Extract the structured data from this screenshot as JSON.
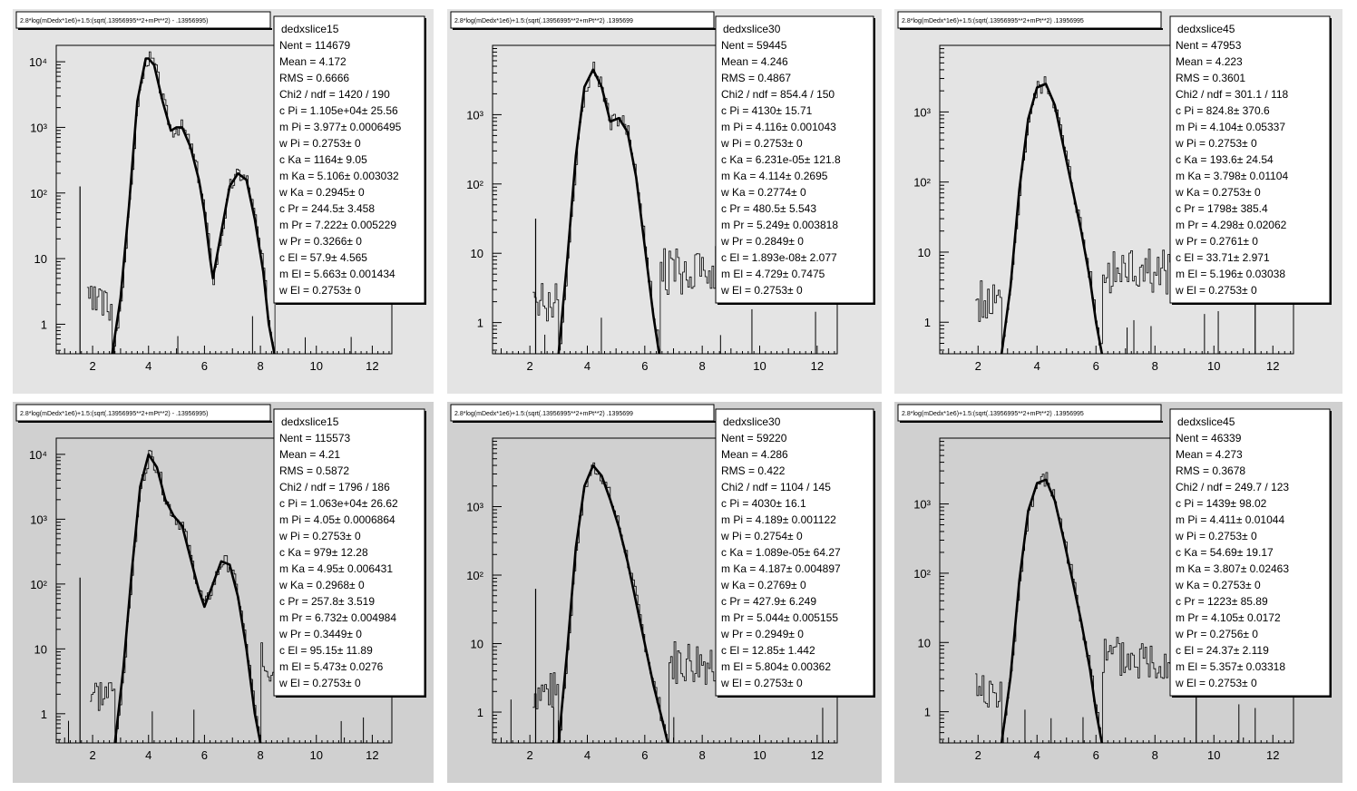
{
  "colors": {
    "row_top_bg": "#e4e4e4",
    "row_bottom_bg": "#d0d0d0",
    "line": "#000000",
    "pad_bg": "#ffffff"
  },
  "panels": [
    {
      "title": "2.8*log(mDedx*1e6)+1.5:(sqrt(.13956995**2+mPt**2) - .13956995)",
      "stats": {
        "name": "dedxslice15",
        "rows": [
          "Nent = 114679",
          "Mean  =  4.172",
          "RMS   = 0.6666",
          "Chi2 / ndf =  1420 / 190",
          "c Pi     = 1.105e+04± 25.56",
          "m Pi     = 3.977± 0.0006495",
          "w Pi     = 0.2753±     0",
          "c Ka     =  1164±  9.05",
          "m Ka     =  5.106± 0.003032",
          "w Ka     = 0.2945±     0",
          "c Pr     = 244.5± 3.458",
          "m Pr     = 7.222± 0.005229",
          "w Pr     = 0.3266±     0",
          "c El     =  57.9± 4.565",
          "m El     = 5.663± 0.001434",
          "w El     = 0.2753±     0"
        ]
      },
      "chart_data": {
        "type": "line",
        "title": "",
        "xlabel": "",
        "ylabel": "",
        "log_y": true,
        "xlim": [
          0.7,
          12.7
        ],
        "ylim_log10": [
          -0.45,
          4.25
        ],
        "x_ticks": [
          "2",
          "4",
          "6",
          "8",
          "10",
          "12"
        ],
        "y_ticks": [
          "1",
          "10",
          "10²",
          "10³",
          "10⁴"
        ],
        "fit_curve": {
          "x": [
            2.7,
            3.0,
            3.3,
            3.6,
            3.9,
            4.0,
            4.2,
            4.5,
            4.8,
            5.0,
            5.2,
            5.5,
            5.8,
            6.0,
            6.2,
            6.3,
            6.6,
            6.9,
            7.2,
            7.5,
            7.8,
            8.1,
            8.3,
            8.5
          ],
          "y_log10": [
            -0.45,
            0.4,
            1.8,
            3.4,
            4.05,
            4.05,
            3.95,
            3.4,
            2.95,
            3.0,
            3.0,
            2.7,
            2.2,
            1.7,
            1.0,
            0.7,
            1.4,
            2.1,
            2.3,
            2.2,
            1.6,
            0.8,
            0.0,
            -0.45
          ]
        },
        "spike": {
          "x": 1.55,
          "y_log10": 2.1
        }
      }
    },
    {
      "title": "2.8*log(mDedx*1e6)+1.5:(sqrt(.13956995**2+mPt**2)  .1395699",
      "stats": {
        "name": "dedxslice30",
        "rows": [
          "Nent = 59445",
          "Mean  =  4.246",
          "RMS   = 0.4867",
          "Chi2 / ndf = 854.4 / 150",
          "c Pi     =  4130± 15.71",
          "m Pi     =  4.116± 0.001043",
          "w Pi     = 0.2753±     0",
          "c Ka     = 6.231e-05± 121.8",
          "m Ka     =  4.114± 0.2695",
          "w Ka     =  0.2774±     0",
          "c Pr     = 480.5± 5.543",
          "m Pr     =  5.249± 0.003818",
          "w Pr     = 0.2849±     0",
          "c El     = 1.893e-08± 2.077",
          "m El     = 4.729± 0.7475",
          "w El     = 0.2753±     0"
        ]
      },
      "chart_data": {
        "type": "line",
        "title": "",
        "xlabel": "",
        "ylabel": "",
        "log_y": true,
        "xlim": [
          0.7,
          12.7
        ],
        "ylim_log10": [
          -0.45,
          4.0
        ],
        "x_ticks": [
          "2",
          "4",
          "6",
          "8",
          "10",
          "12"
        ],
        "y_ticks": [
          "1",
          "10",
          "10²",
          "10³"
        ],
        "fit_curve": {
          "x": [
            3.0,
            3.3,
            3.6,
            3.9,
            4.2,
            4.5,
            4.8,
            5.1,
            5.4,
            5.7,
            6.0,
            6.3,
            6.5
          ],
          "y_log10": [
            -0.45,
            0.9,
            2.4,
            3.4,
            3.65,
            3.4,
            2.9,
            2.95,
            2.75,
            2.1,
            1.1,
            0.1,
            -0.45
          ]
        },
        "spike": {
          "x": 2.2,
          "y_log10": 1.5
        }
      }
    },
    {
      "title": "2.8*log(mDedx*1e6)+1.5:(sqrt(.13956995**2+mPt**2)  .13956995",
      "stats": {
        "name": "dedxslice45",
        "rows": [
          "Nent = 47953",
          "Mean  =  4.223",
          "RMS   = 0.3601",
          "Chi2 / ndf = 301.1 / 118",
          "c Pi     = 824.8± 370.6",
          "m Pi     = 4.104± 0.05337",
          "w Pi     = 0.2753±     0",
          "c Ka     = 193.6± 24.54",
          "m Ka     =  3.798± 0.01104",
          "w Ka     = 0.2753±     0",
          "c Pr     =  1798± 385.4",
          "m Pr     = 4.298± 0.02062",
          "w Pr     = 0.2761±     0",
          "c El     = 33.71± 2.971",
          "m El     = 5.196± 0.03038",
          "w El     = 0.2753±     0"
        ]
      },
      "chart_data": {
        "type": "line",
        "title": "",
        "xlabel": "",
        "ylabel": "",
        "log_y": true,
        "xlim": [
          0.7,
          12.7
        ],
        "ylim_log10": [
          -0.45,
          3.95
        ],
        "x_ticks": [
          "2",
          "4",
          "6",
          "8",
          "10",
          "12"
        ],
        "y_ticks": [
          "1",
          "10",
          "10²",
          "10³"
        ],
        "fit_curve": {
          "x": [
            2.8,
            3.1,
            3.4,
            3.7,
            4.0,
            4.3,
            4.6,
            4.9,
            5.2,
            5.5,
            5.8,
            6.0,
            6.2
          ],
          "y_log10": [
            -0.45,
            0.5,
            1.9,
            2.9,
            3.35,
            3.4,
            3.1,
            2.5,
            1.9,
            1.3,
            0.6,
            0.0,
            -0.45
          ]
        },
        "spike": {
          "x": 11.4,
          "y_log10": 0.9
        }
      }
    },
    {
      "title": "2.8*log(mDedx*1e6)+1.5:(sqrt(.13956995**2+mPt**2) - .13956995)",
      "stats": {
        "name": "dedxslice15",
        "rows": [
          "Nent = 115573",
          "Mean  =   4.21",
          "RMS   = 0.5872",
          "Chi2 / ndf =  1796 / 186",
          "c Pi     = 1.063e+04± 26.62",
          "m Pi     =  4.05± 0.0006864",
          "w Pi     = 0.2753±     0",
          "c Ka     =   979± 12.28",
          "m Ka     =  4.95± 0.006431",
          "w Ka     = 0.2968±     0",
          "c Pr     = 257.8± 3.519",
          "m Pr     = 6.732± 0.004984",
          "w Pr     = 0.3449±     0",
          "c El     = 95.15± 11.89",
          "m El     = 5.473± 0.0276",
          "w El     = 0.2753±     0"
        ]
      },
      "chart_data": {
        "type": "line",
        "title": "",
        "xlabel": "",
        "ylabel": "",
        "log_y": true,
        "xlim": [
          0.7,
          12.7
        ],
        "ylim_log10": [
          -0.45,
          4.25
        ],
        "x_ticks": [
          "2",
          "4",
          "6",
          "8",
          "10",
          "12"
        ],
        "y_ticks": [
          "1",
          "10",
          "10²",
          "10³",
          "10⁴"
        ],
        "fit_curve": {
          "x": [
            2.8,
            3.1,
            3.4,
            3.7,
            4.0,
            4.3,
            4.6,
            4.9,
            5.2,
            5.5,
            5.8,
            6.0,
            6.3,
            6.6,
            6.9,
            7.2,
            7.5,
            7.8,
            8.0
          ],
          "y_log10": [
            -0.45,
            0.7,
            2.2,
            3.5,
            4.0,
            3.8,
            3.3,
            3.05,
            2.9,
            2.4,
            1.9,
            1.65,
            2.0,
            2.35,
            2.3,
            1.8,
            1.0,
            0.0,
            -0.45
          ]
        },
        "spike": {
          "x": 1.55,
          "y_log10": 2.1
        }
      }
    },
    {
      "title": "2.8*log(mDedx*1e6)+1.5:(sqrt(.13956995**2+mPt**2)  .1395699",
      "stats": {
        "name": "dedxslice30",
        "rows": [
          "Nent = 59220",
          "Mean  =  4.286",
          "RMS   =  0.422",
          "Chi2 / ndf =  1104 / 145",
          "c Pi     =  4030± 16.1",
          "m Pi     = 4.189± 0.001122",
          "w Pi     = 0.2754±     0",
          "c Ka     = 1.089e-05± 64.27",
          "m Ka     =  4.187± 0.004897",
          "w Ka     =  0.2769±     0",
          "c Pr     = 427.9± 6.249",
          "m Pr     = 5.044± 0.005155",
          "w Pr     = 0.2949±     0",
          "c El     = 12.85± 1.442",
          "m El     = 5.804± 0.00362",
          "w El     = 0.2753±     0"
        ]
      },
      "chart_data": {
        "type": "line",
        "title": "",
        "xlabel": "",
        "ylabel": "",
        "log_y": true,
        "xlim": [
          0.7,
          12.7
        ],
        "ylim_log10": [
          -0.45,
          4.0
        ],
        "x_ticks": [
          "2",
          "4",
          "6",
          "8",
          "10",
          "12"
        ],
        "y_ticks": [
          "1",
          "10",
          "10²",
          "10³"
        ],
        "fit_curve": {
          "x": [
            3.0,
            3.3,
            3.6,
            3.9,
            4.2,
            4.5,
            4.8,
            5.1,
            5.4,
            5.7,
            6.0,
            6.3,
            6.6,
            6.8
          ],
          "y_log10": [
            -0.45,
            0.9,
            2.4,
            3.3,
            3.6,
            3.45,
            3.1,
            2.7,
            2.2,
            1.6,
            1.0,
            0.4,
            -0.1,
            -0.45
          ]
        },
        "spike": {
          "x": 2.2,
          "y_log10": 1.8
        }
      }
    },
    {
      "title": "2.8*log(mDedx*1e6)+1.5:(sqrt(.13956995**2+mPt**2)  .13956995",
      "stats": {
        "name": "dedxslice45",
        "rows": [
          "Nent = 46339",
          "Mean  =  4.273",
          "RMS   = 0.3678",
          "Chi2 / ndf = 249.7 / 123",
          "c Pi     =  1439± 98.02",
          "m Pi     = 4.411± 0.01044",
          "w Pi     = 0.2753±     0",
          "c Ka     = 54.69± 19.17",
          "m Ka     =  3.807± 0.02463",
          "w Ka     = 0.2753±     0",
          "c Pr     =  1223± 85.89",
          "m Pr     = 4.105± 0.0172",
          "w Pr     = 0.2756±     0",
          "c El     = 24.37± 2.119",
          "m El     = 5.357± 0.03318",
          "w El     = 0.2753±     0"
        ]
      },
      "chart_data": {
        "type": "line",
        "title": "",
        "xlabel": "",
        "ylabel": "",
        "log_y": true,
        "xlim": [
          0.7,
          12.7
        ],
        "ylim_log10": [
          -0.45,
          3.95
        ],
        "x_ticks": [
          "2",
          "4",
          "6",
          "8",
          "10",
          "12"
        ],
        "y_ticks": [
          "1",
          "10",
          "10²",
          "10³"
        ],
        "fit_curve": {
          "x": [
            2.8,
            3.1,
            3.4,
            3.7,
            4.0,
            4.3,
            4.6,
            4.9,
            5.2,
            5.5,
            5.8,
            6.0,
            6.2
          ],
          "y_log10": [
            -0.45,
            0.5,
            1.9,
            2.9,
            3.3,
            3.35,
            3.05,
            2.5,
            1.9,
            1.3,
            0.6,
            0.0,
            -0.45
          ]
        },
        "spike": {
          "x": 9.4,
          "y_log10": 0.9
        }
      }
    }
  ]
}
